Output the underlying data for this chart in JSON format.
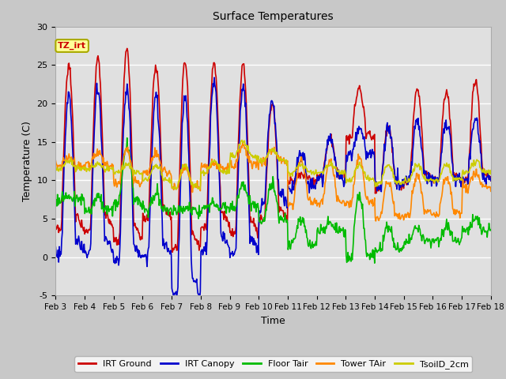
{
  "title": "Surface Temperatures",
  "xlabel": "Time",
  "ylabel": "Temperature (C)",
  "ylim": [
    -5,
    30
  ],
  "xlim": [
    0,
    15
  ],
  "fig_bg_color": "#c8c8c8",
  "plot_bg_color": "#e0e0e0",
  "grid_color": "#ffffff",
  "series": {
    "IRT Ground": {
      "color": "#cc0000",
      "lw": 1.2
    },
    "IRT Canopy": {
      "color": "#0000cc",
      "lw": 1.2
    },
    "Floor Tair": {
      "color": "#00bb00",
      "lw": 1.2
    },
    "Tower TAir": {
      "color": "#ff8800",
      "lw": 1.2
    },
    "TsoilD_2cm": {
      "color": "#cccc00",
      "lw": 1.2
    }
  },
  "xtick_labels": [
    "Feb 3",
    "Feb 4",
    "Feb 5",
    "Feb 6",
    "Feb 7",
    "Feb 8",
    "Feb 9",
    "Feb 10",
    "Feb 11",
    "Feb 12",
    "Feb 13",
    "Feb 14",
    "Feb 15",
    "Feb 16",
    "Feb 17",
    "Feb 18"
  ],
  "xtick_positions": [
    0,
    1,
    2,
    3,
    4,
    5,
    6,
    7,
    8,
    9,
    10,
    11,
    12,
    13,
    14,
    15
  ],
  "ytick_labels": [
    "-5",
    "0",
    "5",
    "10",
    "15",
    "20",
    "25",
    "30"
  ],
  "ytick_positions": [
    -5,
    0,
    5,
    10,
    15,
    20,
    25,
    30
  ],
  "annotation_text": "TZ_irt",
  "annotation_color": "#cc0000",
  "annotation_bg": "#ffff99",
  "annotation_border": "#aaaa00",
  "n_per_day": 48,
  "n_days": 15,
  "irt_g_peaks": [
    25,
    26,
    27,
    24.8,
    25.5,
    25.5,
    25.2,
    20,
    10.8,
    15.5,
    22,
    17,
    22,
    21.5,
    23
  ],
  "irt_g_nights": [
    3.5,
    3.5,
    2,
    5,
    1,
    4,
    3,
    5,
    10,
    10.5,
    15.5,
    9,
    10,
    10,
    10
  ],
  "irt_c_peaks": [
    21,
    22,
    22,
    21,
    21,
    23,
    22,
    20.5,
    13.5,
    15.5,
    17,
    17,
    17.5,
    17.5,
    18
  ],
  "irt_c_nights": [
    0.5,
    0.5,
    -0.5,
    0,
    -5,
    1,
    0.5,
    7,
    9,
    10,
    13,
    9,
    10,
    10,
    10
  ],
  "ft_peaks": [
    8,
    8,
    14.5,
    8,
    6.5,
    7,
    9.5,
    9.5,
    5,
    4.5,
    8,
    4,
    4,
    4,
    5
  ],
  "ft_nights": [
    7.5,
    6,
    7,
    6,
    6,
    6.5,
    6.5,
    4.5,
    1.5,
    3.5,
    0,
    1,
    2,
    2,
    3.5
  ],
  "ta_peaks": [
    13,
    13.5,
    14,
    13.5,
    11.5,
    12,
    14.5,
    14,
    12.5,
    12.5,
    13,
    10,
    10.5,
    10.5,
    11
  ],
  "ta_nights": [
    12,
    12,
    9.5,
    11,
    9,
    11.5,
    12,
    12.5,
    7,
    7,
    7,
    5,
    5.5,
    5.5,
    9
  ],
  "ts_peaks": [
    12.5,
    12,
    12,
    12,
    12,
    12.5,
    15,
    14,
    12,
    12,
    12,
    12,
    12,
    12,
    12.5
  ],
  "ts_nights": [
    11.5,
    11.5,
    11,
    10,
    9,
    11,
    13,
    12.5,
    11,
    11,
    10,
    9.5,
    10,
    10,
    11
  ]
}
